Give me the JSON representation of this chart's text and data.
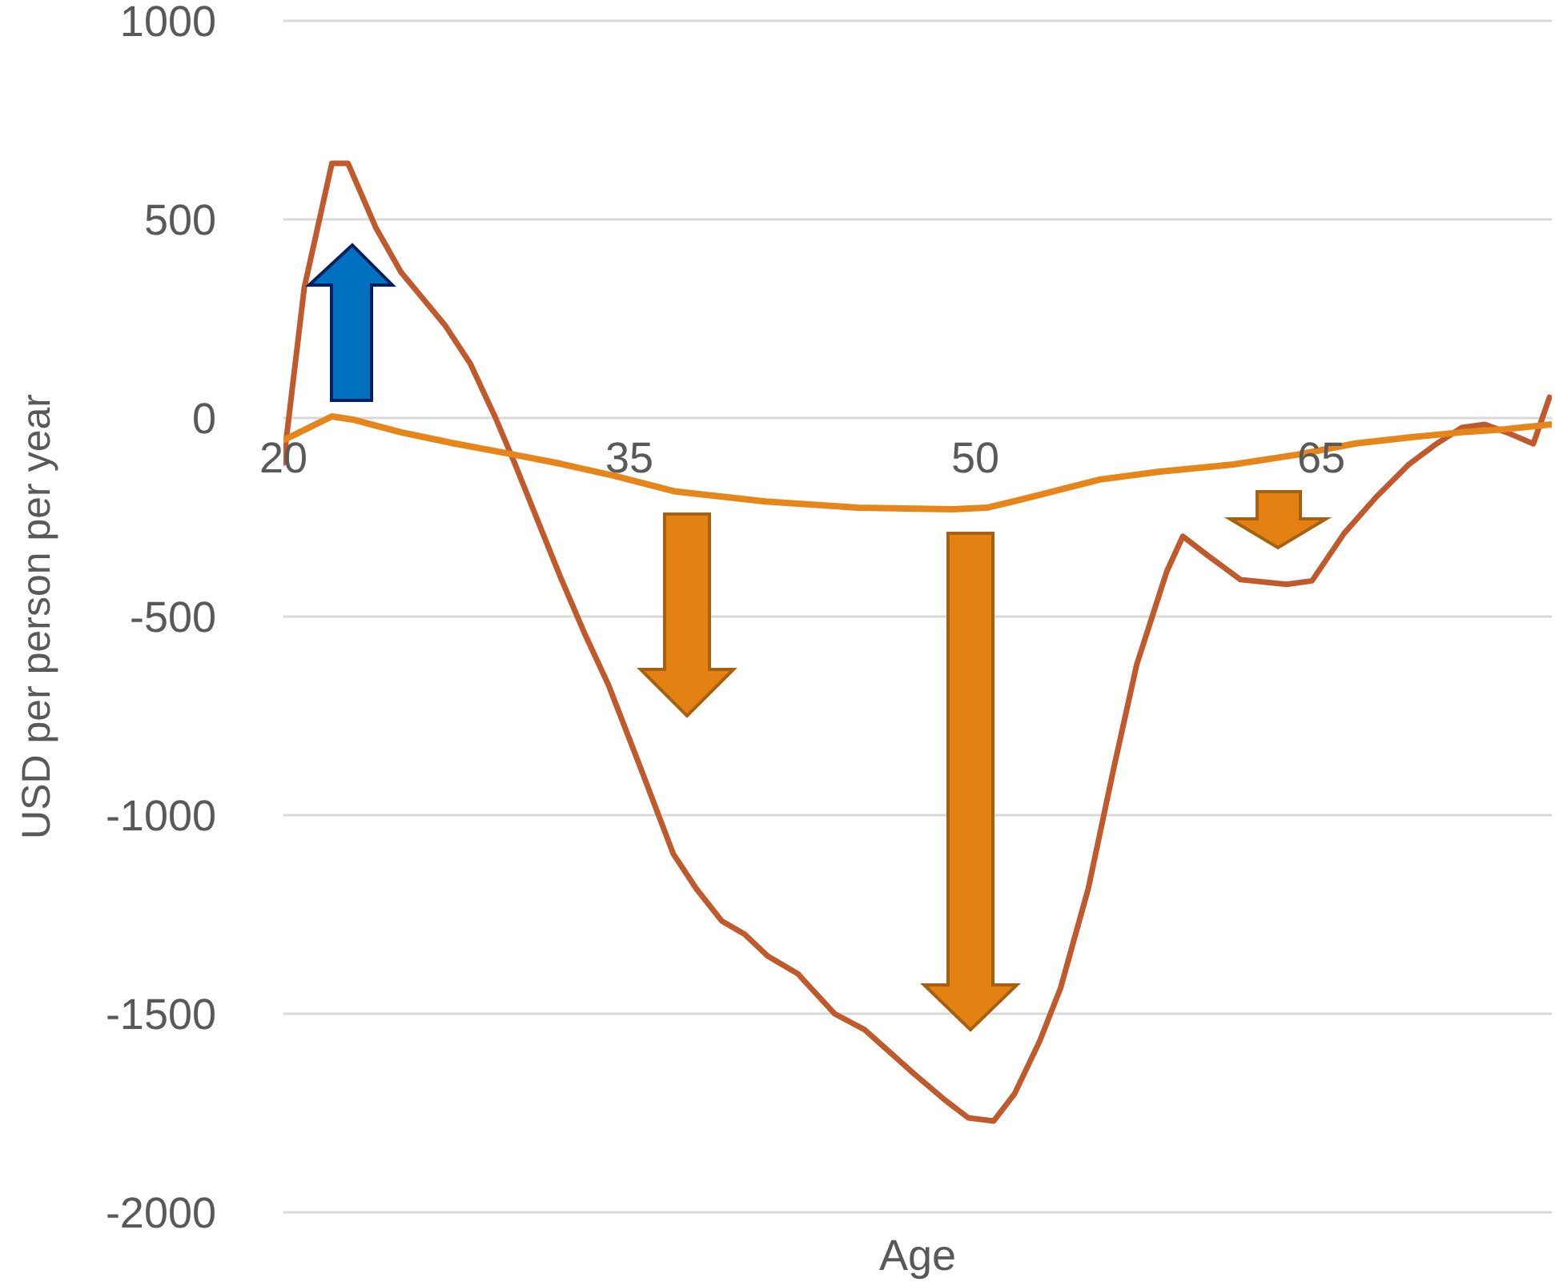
{
  "chart_data": {
    "type": "line",
    "xlabel": "Age",
    "ylabel": "USD per person per year",
    "xlim": [
      20,
      75
    ],
    "xticks": [
      20,
      35,
      50,
      65
    ],
    "ylim": [
      -2000,
      1000
    ],
    "yticks": [
      -2000,
      -1500,
      -1000,
      -500,
      0,
      500,
      1000
    ],
    "grid": "y",
    "legend": false,
    "marker": "none",
    "line_style": "solid",
    "series": [
      {
        "color": "#c0592b",
        "x": [
          20,
          20.9,
          22.1,
          22.8,
          24,
          25.1,
          27,
          28.1,
          29.2,
          30,
          32,
          33.1,
          34.1,
          35.5,
          36.9,
          37.9,
          39,
          40,
          41,
          42.3,
          43.9,
          45.2,
          46.3,
          47.3,
          48.7,
          49.7,
          50.8,
          51.7,
          52.8,
          53.7,
          54.9,
          56,
          57,
          58.3,
          59,
          60.1,
          61.5,
          63.5,
          64.6,
          66,
          67.4,
          68.8,
          70,
          71.1,
          72.1,
          73.2,
          74.2,
          74.9
        ],
        "values": [
          -113,
          327,
          641,
          641,
          480,
          367,
          234,
          137,
          0,
          -110,
          -399,
          -548,
          -673,
          -883,
          -1097,
          -1185,
          -1266,
          -1300,
          -1355,
          -1399,
          -1500,
          -1540,
          -1597,
          -1649,
          -1718,
          -1762,
          -1770,
          -1702,
          -1568,
          -1435,
          -1185,
          -883,
          -621,
          -387,
          -298,
          -347,
          -407,
          -419,
          -410,
          -290,
          -198,
          -117,
          -65,
          -24,
          -16,
          -40,
          -65,
          52
        ]
      },
      {
        "color": "#e6861a",
        "x": [
          20,
          22.1,
          23,
          25.1,
          27.4,
          29.7,
          32,
          34.3,
          37,
          40.9,
          44.9,
          49,
          50.5,
          52.5,
          55.4,
          58,
          61.2,
          64,
          66.5,
          69,
          71.1,
          73,
          75
        ],
        "values": [
          -56,
          4,
          -4,
          -36,
          -64,
          -89,
          -115,
          -145,
          -185,
          -210,
          -226,
          -230,
          -226,
          -198,
          -155,
          -135,
          -117,
          -92,
          -64,
          -48,
          -36,
          -28,
          -16
        ]
      }
    ]
  }
}
